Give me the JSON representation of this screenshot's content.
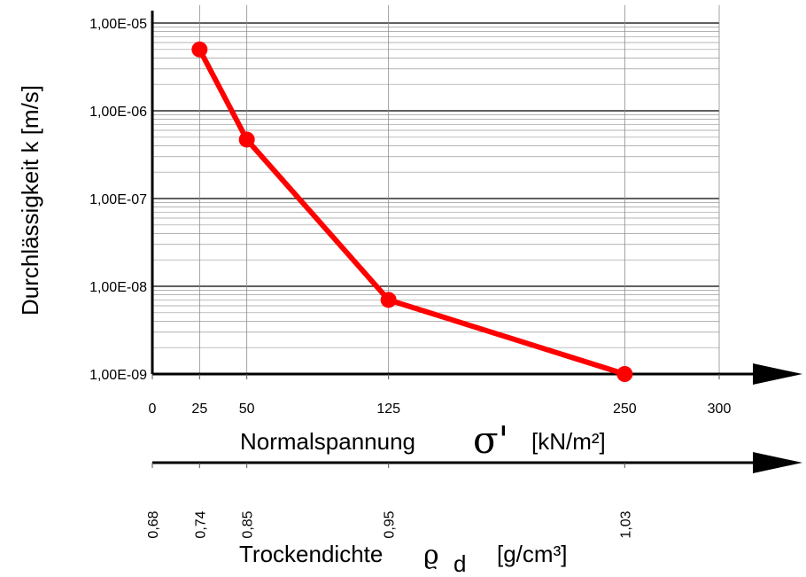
{
  "chart_data": {
    "type": "line",
    "y_axis": {
      "label": "Durchlässigkeit k [m/s]",
      "scale": "log",
      "range": [
        1e-09,
        1.6e-05
      ],
      "tick_values": [
        1e-09,
        1e-08,
        1e-07,
        1e-06,
        1e-05
      ],
      "tick_labels": [
        "1,00E-09",
        "1,00E-08",
        "1,00E-07",
        "1,00E-06",
        "1,00E-05"
      ],
      "minor_grid": true
    },
    "x_axis": {
      "label_prefix": "Normalspannung",
      "label_symbol": "σ'",
      "label_unit": "[kN/m²]",
      "range": [
        0,
        300
      ],
      "tick_values": [
        0,
        25,
        50,
        125,
        250,
        300
      ],
      "tick_labels": [
        "0",
        "25",
        "50",
        "125",
        "250",
        "300"
      ],
      "grid": true
    },
    "secondary_x_axis": {
      "label_prefix": "Trockendichte",
      "label_symbol": "ϱ",
      "label_subscript": "d",
      "label_unit": "[g/cm³]",
      "tick_positions_on_primary": [
        0,
        25,
        50,
        125,
        250
      ],
      "tick_labels": [
        "0,68",
        "0,74",
        "0,85",
        "0,95",
        "1,03"
      ]
    },
    "series": [
      {
        "color": "#ff0000",
        "x": [
          25,
          50,
          125,
          250
        ],
        "y": [
          5e-06,
          4.7e-07,
          7e-09,
          1e-09
        ]
      }
    ]
  }
}
